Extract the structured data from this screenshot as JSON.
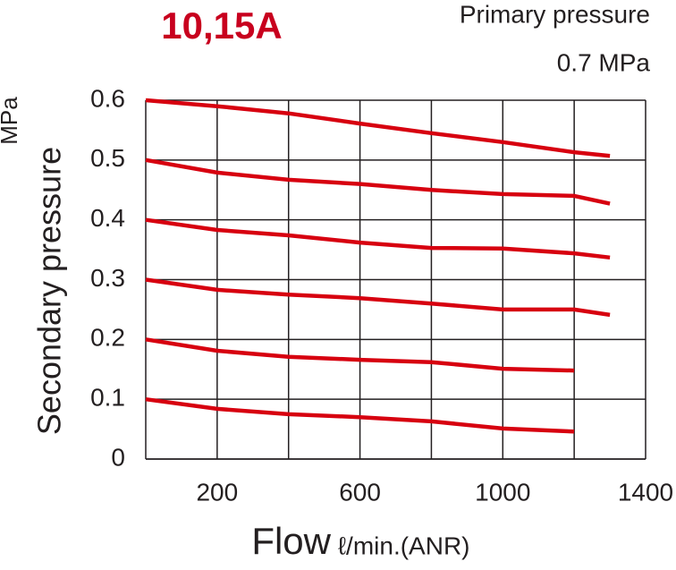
{
  "chart_data": {
    "type": "line",
    "title": "10,15A",
    "annotations": [
      "Primary pressure",
      "0.7 MPa"
    ],
    "y_label": "Secondary pressure",
    "y_unit": "MPa",
    "x_label": "Flow",
    "x_unit": "ℓ/min.(ANR)",
    "x": [
      0,
      200,
      400,
      600,
      800,
      1000,
      1200,
      1300
    ],
    "series": [
      {
        "color": "#d7000f",
        "values": [
          0.6,
          0.59,
          0.578,
          0.561,
          0.545,
          0.53,
          0.513,
          0.507
        ]
      },
      {
        "color": "#d7000f",
        "values": [
          0.5,
          0.479,
          0.467,
          0.46,
          0.45,
          0.443,
          0.44,
          0.427
        ]
      },
      {
        "color": "#d7000f",
        "values": [
          0.4,
          0.383,
          0.374,
          0.362,
          0.353,
          0.352,
          0.344,
          0.337
        ]
      },
      {
        "color": "#d7000f",
        "values": [
          0.3,
          0.283,
          0.275,
          0.269,
          0.26,
          0.25,
          0.25,
          0.241
        ]
      },
      {
        "color": "#d7000f",
        "values": [
          0.2,
          0.181,
          0.171,
          0.166,
          0.162,
          0.151,
          0.148,
          null
        ]
      },
      {
        "color": "#d7000f",
        "values": [
          0.1,
          0.084,
          0.075,
          0.07,
          0.063,
          0.051,
          0.046,
          null
        ]
      }
    ],
    "xlim": [
      0,
      1400
    ],
    "xticks": [
      200,
      600,
      1000,
      1400
    ],
    "xminor_ticks": [
      400,
      800,
      1200
    ],
    "ylim": [
      0,
      0.6
    ],
    "yticks": [
      0,
      0.1,
      0.2,
      0.3,
      0.4,
      0.5,
      0.6
    ],
    "grid": true,
    "title_color": "#c8001e"
  }
}
